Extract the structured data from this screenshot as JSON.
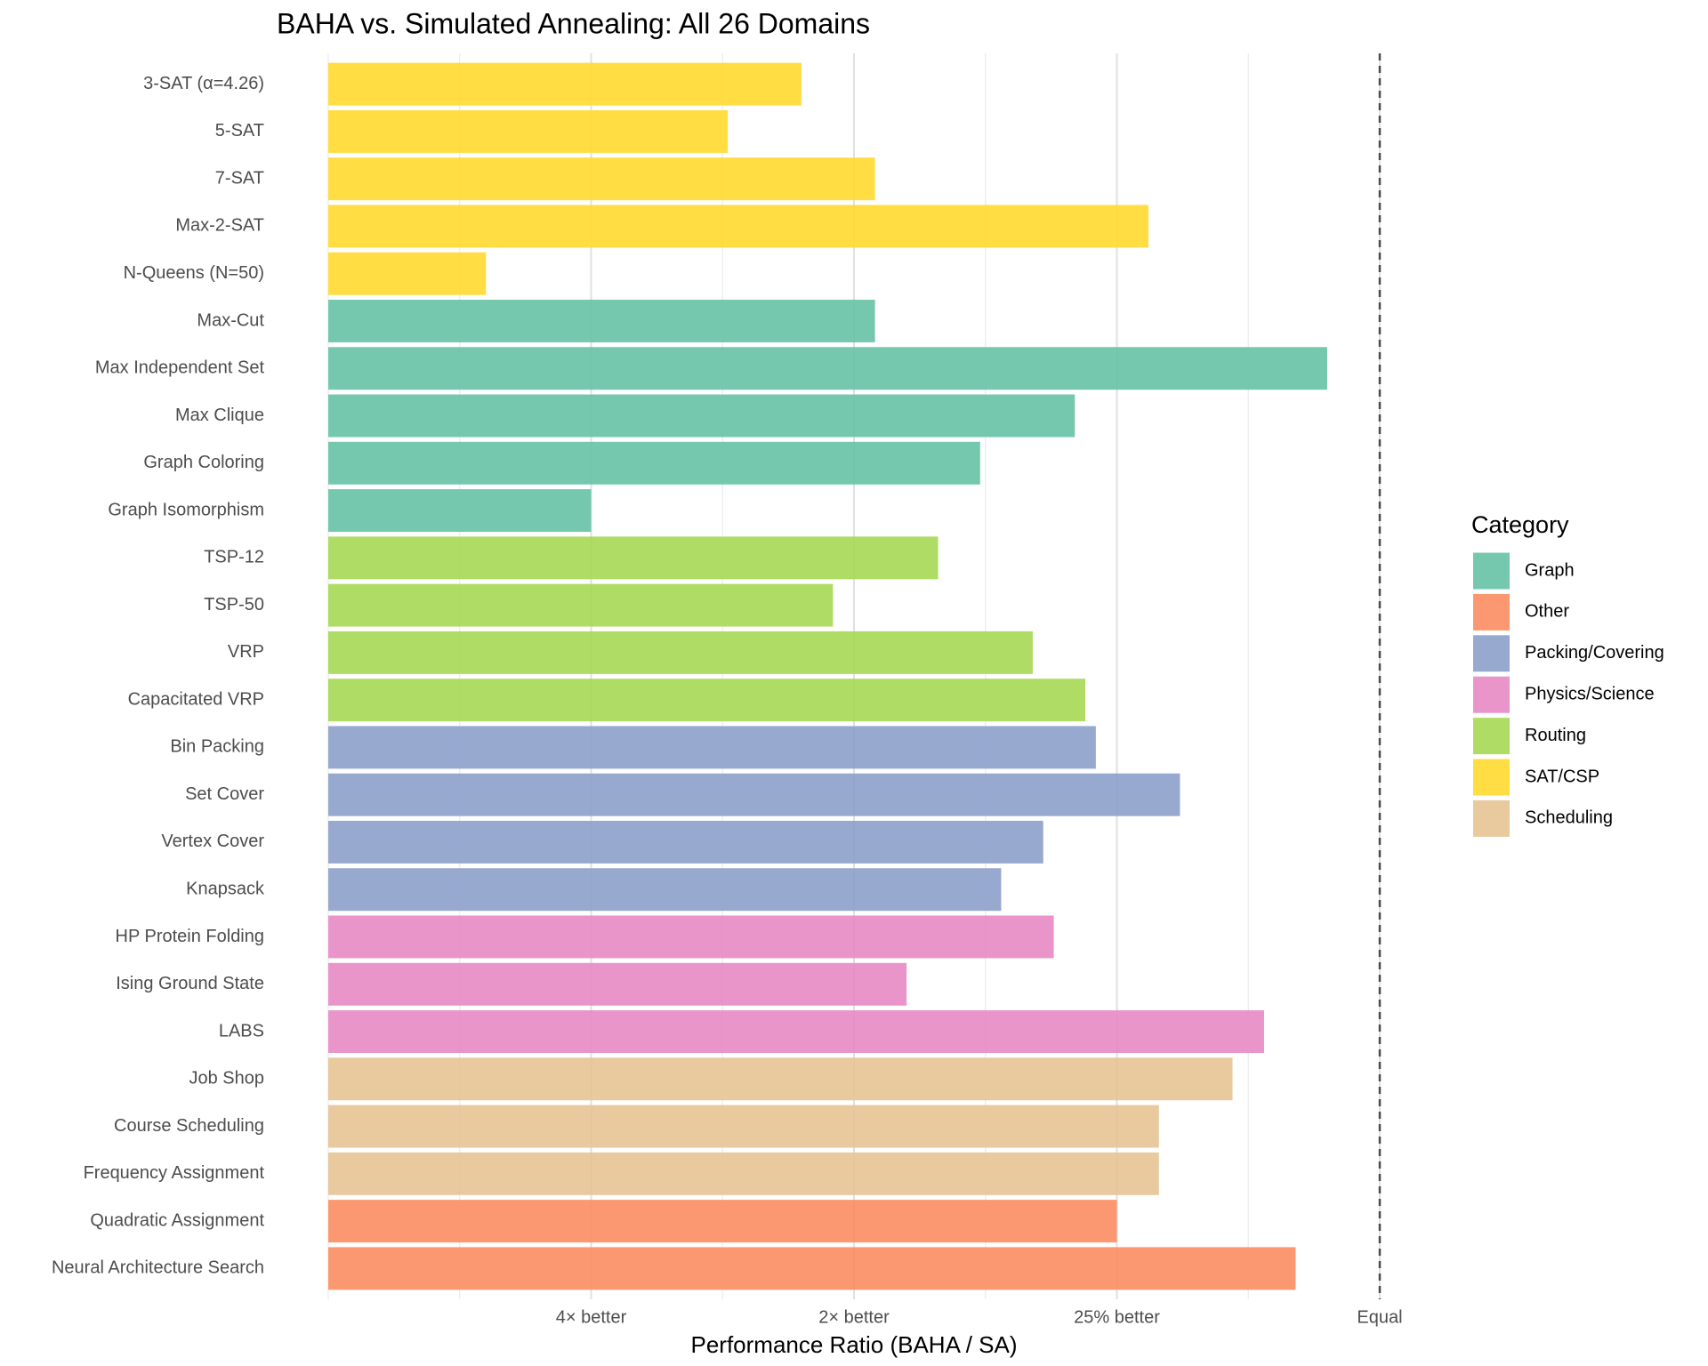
{
  "chart_data": {
    "type": "hbar",
    "title": "BAHA vs. Simulated Annealing: All 26 Domains",
    "x_label": "Performance Ratio (BAHA / SA)",
    "legend_title": "Category",
    "legend_position": "right",
    "categories": [
      "3-SAT (α=4.26)",
      "5-SAT",
      "7-SAT",
      "Max-2-SAT",
      "N-Queens (N=50)",
      "Max-Cut",
      "Max Independent Set",
      "Max Clique",
      "Graph Coloring",
      "Graph Isomorphism",
      "TSP-12",
      "TSP-50",
      "VRP",
      "Capacitated VRP",
      "Bin Packing",
      "Set Cover",
      "Vertex Cover",
      "Knapsack",
      "HP Protein Folding",
      "Ising Ground State",
      "LABS",
      "Job Shop",
      "Course Scheduling",
      "Frequency Assignment",
      "Quadratic Assignment",
      "Neural Architecture Search"
    ],
    "series": [
      {
        "name": "Graph",
        "color": "#66c2a5",
        "values": [
          null,
          null,
          null,
          null,
          null,
          0.52,
          0.95,
          0.71,
          0.62,
          0.25,
          null,
          null,
          null,
          null,
          null,
          null,
          null,
          null,
          null,
          null,
          null,
          null,
          null,
          null,
          null,
          null
        ]
      },
      {
        "name": "Other",
        "color": "#fc8d62",
        "values": [
          null,
          null,
          null,
          null,
          null,
          null,
          null,
          null,
          null,
          null,
          null,
          null,
          null,
          null,
          null,
          null,
          null,
          null,
          null,
          null,
          null,
          null,
          null,
          null,
          0.75,
          0.92
        ]
      },
      {
        "name": "Packing/Covering",
        "color": "#8da0cb",
        "values": [
          null,
          null,
          null,
          null,
          null,
          null,
          null,
          null,
          null,
          null,
          null,
          null,
          null,
          null,
          0.73,
          0.81,
          0.68,
          0.64,
          null,
          null,
          null,
          null,
          null,
          null,
          null,
          null
        ]
      },
      {
        "name": "Physics/Science",
        "color": "#e78ac3",
        "values": [
          null,
          null,
          null,
          null,
          null,
          null,
          null,
          null,
          null,
          null,
          null,
          null,
          null,
          null,
          null,
          null,
          null,
          null,
          0.69,
          0.55,
          0.89,
          null,
          null,
          null,
          null,
          null
        ]
      },
      {
        "name": "Routing",
        "color": "#a6d854",
        "values": [
          null,
          null,
          null,
          null,
          null,
          null,
          null,
          null,
          null,
          null,
          0.58,
          0.48,
          0.67,
          0.72,
          null,
          null,
          null,
          null,
          null,
          null,
          null,
          null,
          null,
          null,
          null,
          null
        ]
      },
      {
        "name": "SAT/CSP",
        "color": "#ffd92f",
        "values": [
          0.45,
          0.38,
          0.52,
          0.78,
          0.15,
          null,
          null,
          null,
          null,
          null,
          null,
          null,
          null,
          null,
          null,
          null,
          null,
          null,
          null,
          null,
          null,
          null,
          null,
          null,
          null,
          null
        ]
      },
      {
        "name": "Scheduling",
        "color": "#e5c494",
        "values": [
          null,
          null,
          null,
          null,
          null,
          null,
          null,
          null,
          null,
          null,
          null,
          null,
          null,
          null,
          null,
          null,
          null,
          null,
          null,
          null,
          null,
          0.86,
          0.79,
          0.79,
          null,
          null
        ]
      }
    ],
    "xlim": [
      0,
      1
    ],
    "xticks": [
      {
        "value": 0.25,
        "label": "4× better"
      },
      {
        "value": 0.5,
        "label": "2× better"
      },
      {
        "value": 0.75,
        "label": "25% better"
      },
      {
        "value": 1,
        "label": "Equal"
      }
    ],
    "x_minor_grid": [
      0,
      0.125,
      0.375,
      0.625,
      0.875
    ],
    "reference_line": 1,
    "grid": true
  }
}
